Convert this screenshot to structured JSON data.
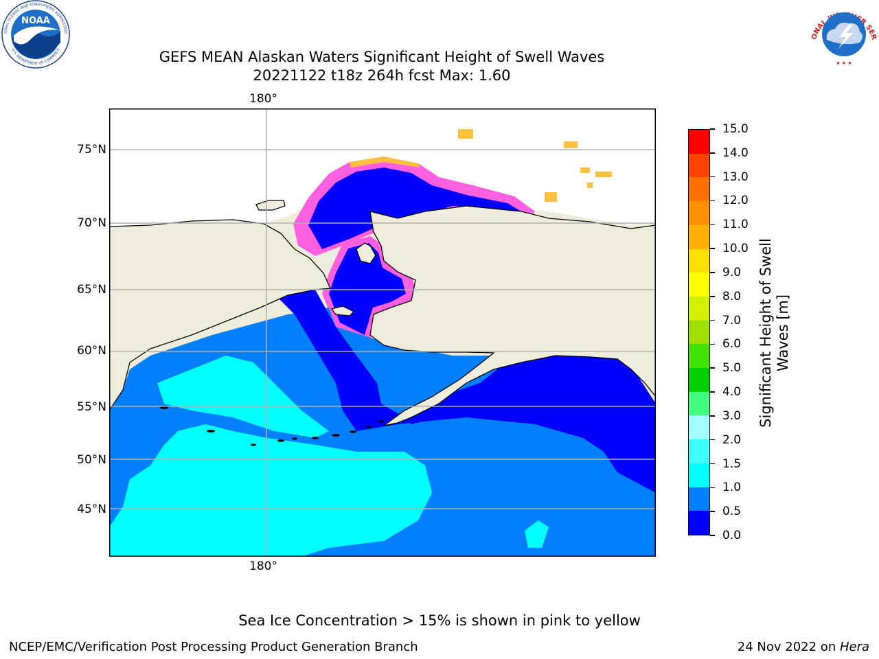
{
  "title_line1": "GEFS MEAN Alaskan Waters Significant Height of Swell Waves",
  "title_line2": "20221122 t18z 264h fcst   Max: 1.60",
  "map": {
    "lon_label_top": "180°",
    "lon_label_bottom": "180°",
    "lat_labels": [
      "75°N",
      "70°N",
      "65°N",
      "60°N",
      "55°N",
      "50°N",
      "45°N"
    ]
  },
  "colorbar": {
    "title_line1": "Significant Height of Swell",
    "title_line2": "Waves [m]",
    "ticks": [
      "15.0",
      "14.0",
      "13.0",
      "12.0",
      "11.0",
      "10.0",
      "9.0",
      "8.0",
      "7.0",
      "6.0",
      "5.0",
      "4.0",
      "3.0",
      "2.0",
      "1.5",
      "1.0",
      "0.5",
      "0.0"
    ],
    "colors_bottom_to_top": [
      "#0000ff",
      "#0080ff",
      "#00ffff",
      "#40ffff",
      "#a0ffff",
      "#40ff80",
      "#00d000",
      "#40e000",
      "#a0e000",
      "#d0f000",
      "#ffff00",
      "#ffe000",
      "#ffb000",
      "#ff9000",
      "#ff7000",
      "#ff4000",
      "#ff0000"
    ]
  },
  "logos": {
    "noaa_text": "NOAA",
    "noaa_ring": "NATIONAL OCEANIC AND ATMOSPHERIC ADMINISTRATION",
    "noaa_ring_bottom": "U.S. DEPARTMENT OF COMMERCE",
    "nws_ring": "NATIONAL WEATHER SERVICE"
  },
  "note": "Sea Ice Concentration > 15% is shown in pink to yellow",
  "footer_left": "NCEP/EMC/Verification Post Processing Product Generation Branch",
  "footer_right_prefix": "24 Nov 2022 on ",
  "footer_right_italic": "Hera"
}
